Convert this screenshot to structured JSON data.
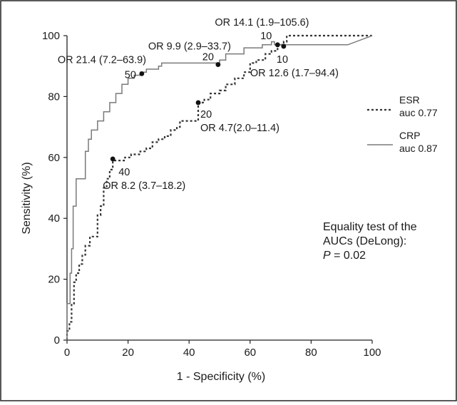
{
  "chart_data": {
    "type": "line",
    "xlabel": "1 - Specificity (%)",
    "ylabel": "Sensitivity (%)",
    "xlim": [
      0,
      100
    ],
    "ylim": [
      0,
      100
    ],
    "xticks": [
      0,
      20,
      40,
      60,
      80,
      100
    ],
    "yticks": [
      0,
      20,
      40,
      60,
      80,
      100
    ],
    "grid": false,
    "legend_position": "right",
    "series": [
      {
        "name": "ESR",
        "legend_sub": "auc 0.77",
        "style": "dotted",
        "color": "#333333",
        "x": [
          0,
          0,
          0.8,
          0.8,
          1.5,
          1.5,
          2.3,
          2.3,
          3,
          3,
          4,
          4,
          5,
          5,
          6,
          6,
          7.5,
          7.5,
          10,
          10,
          11,
          11,
          12,
          12,
          13,
          13,
          14,
          14,
          15,
          15,
          19,
          19,
          21,
          21,
          24,
          24,
          26,
          26,
          28,
          28,
          30,
          30,
          32,
          32,
          34,
          34,
          36,
          36,
          37,
          37,
          43,
          43,
          45,
          45,
          47,
          47,
          50,
          50,
          52,
          52,
          55,
          55,
          58,
          58,
          60,
          60,
          62,
          62,
          65,
          65,
          67,
          67,
          69,
          69,
          71,
          71,
          72,
          72,
          100
        ],
        "y": [
          0,
          3,
          3,
          6,
          6,
          12,
          12,
          19,
          19,
          22,
          22,
          25,
          25,
          28,
          28,
          31,
          31,
          34,
          34,
          41,
          41,
          44,
          44,
          50,
          50,
          53,
          53,
          56,
          56,
          59,
          59,
          60,
          60,
          61,
          61,
          62,
          62,
          63,
          63,
          65,
          65,
          66,
          66,
          67,
          67,
          69,
          69,
          70,
          70,
          72,
          72,
          78,
          78,
          79,
          79,
          81,
          81,
          82,
          82,
          84,
          84,
          86,
          86,
          88,
          88,
          91,
          91,
          92,
          92,
          94,
          94,
          95,
          95,
          97,
          97,
          98,
          98,
          100,
          100
        ]
      },
      {
        "name": "CRP",
        "legend_sub": "auc 0.87",
        "style": "solid",
        "color": "#7a7a7a",
        "x": [
          0,
          0,
          1,
          1,
          1.5,
          1.5,
          2,
          2,
          3,
          3,
          5,
          5,
          6,
          6,
          7,
          7,
          8,
          8,
          10,
          10,
          12,
          12,
          14,
          14,
          16,
          16,
          18,
          18,
          20,
          20,
          22,
          22,
          24,
          24,
          26,
          26,
          30,
          30,
          31,
          31,
          50,
          50,
          52,
          52,
          58,
          58,
          61,
          61,
          64,
          64,
          67,
          67,
          68,
          68,
          92,
          92,
          100
        ],
        "y": [
          0,
          12,
          12,
          22,
          22,
          30,
          30,
          44,
          44,
          53,
          53,
          53,
          53,
          62,
          62,
          66,
          66,
          69,
          69,
          72,
          72,
          75,
          75,
          78,
          78,
          81,
          81,
          84,
          84,
          86,
          86,
          87,
          87,
          88,
          88,
          89,
          89,
          90,
          90,
          91,
          91,
          92,
          92,
          94,
          94,
          96,
          96,
          96,
          96,
          97,
          97,
          98,
          98,
          97,
          97,
          97,
          100
        ]
      }
    ],
    "points": [
      {
        "series": "CRP",
        "x": 24.5,
        "y": 87.5,
        "label": "50",
        "or": "OR 21.4 (7.2–63.9)"
      },
      {
        "series": "CRP",
        "x": 49.5,
        "y": 90.5,
        "label": "20",
        "or": "OR 9.9 (2.9–33.7)"
      },
      {
        "series": "CRP",
        "x": 69,
        "y": 97,
        "label": "10",
        "or": "OR 14.1 (1.9–105.6)"
      },
      {
        "series": "ESR",
        "x": 43,
        "y": 78,
        "label": "20",
        "or": "OR 4.7(2.0–11.4)"
      },
      {
        "series": "ESR",
        "x": 15,
        "y": 59.5,
        "label": "40",
        "or": "OR 8.2 (3.7–18.2)"
      },
      {
        "series": "ESR",
        "x": 71,
        "y": 96.5,
        "label": "10",
        "or": "OR 12.6 (1.7–94.4)"
      }
    ],
    "annotation": {
      "line1": "Equality test of the",
      "line2": "AUCs (DeLong):",
      "p_symbol": "P",
      "p_value": "= 0.02"
    }
  }
}
